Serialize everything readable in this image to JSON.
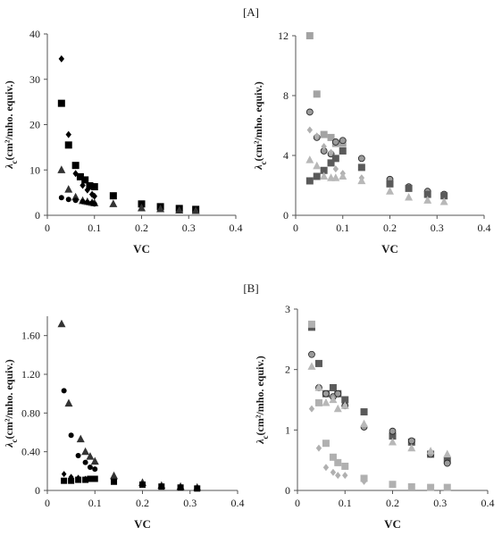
{
  "figure": {
    "panel_labels": [
      "[A]",
      "[B]"
    ]
  },
  "chart_data": [
    {
      "type": "scatter",
      "panel": "[A]",
      "xlabel": "VC",
      "ylabel_main": "λ",
      "ylabel_sub": "c",
      "ylabel_rest": "(cm²/mho. equiv.)",
      "xlim": [
        0,
        0.4
      ],
      "ylim": [
        0,
        40
      ],
      "xticks": [
        "0",
        "0.1",
        "0.2",
        "0.3",
        "0.4"
      ],
      "yticks": [
        "0",
        "10",
        "20",
        "30",
        "40"
      ],
      "grid": false,
      "series": [
        {
          "marker": "diamond",
          "color": "#000000",
          "size": 8,
          "points": [
            [
              0.03,
              34.5
            ],
            [
              0.045,
              17.8
            ],
            [
              0.06,
              9.2
            ],
            [
              0.075,
              6.6
            ],
            [
              0.085,
              5.6
            ],
            [
              0.095,
              4.6
            ],
            [
              0.1,
              4.2
            ]
          ]
        },
        {
          "marker": "square",
          "color": "#000000",
          "size": 8,
          "points": [
            [
              0.03,
              24.7
            ],
            [
              0.045,
              15.5
            ],
            [
              0.06,
              11
            ],
            [
              0.07,
              8.5
            ],
            [
              0.08,
              7.8
            ],
            [
              0.09,
              6.5
            ],
            [
              0.1,
              6.3
            ],
            [
              0.14,
              4.3
            ],
            [
              0.2,
              2.5
            ],
            [
              0.24,
              1.9
            ],
            [
              0.28,
              1.5
            ],
            [
              0.315,
              1.3
            ]
          ]
        },
        {
          "marker": "triangle",
          "color": "#333333",
          "size": 9,
          "points": [
            [
              0.03,
              10
            ],
            [
              0.045,
              5.7
            ],
            [
              0.06,
              4
            ],
            [
              0.075,
              3.2
            ],
            [
              0.085,
              3
            ],
            [
              0.095,
              2.8
            ],
            [
              0.1,
              2.7
            ],
            [
              0.14,
              2.5
            ],
            [
              0.2,
              1.6
            ],
            [
              0.24,
              1.4
            ],
            [
              0.28,
              1.1
            ],
            [
              0.315,
              1
            ]
          ]
        },
        {
          "marker": "circle",
          "color": "#000000",
          "size": 6,
          "points": [
            [
              0.03,
              3.9
            ],
            [
              0.045,
              3.5
            ],
            [
              0.06,
              3.3
            ],
            [
              0.075,
              3
            ],
            [
              0.085,
              2.8
            ],
            [
              0.095,
              2.7
            ],
            [
              0.1,
              2.5
            ]
          ]
        }
      ]
    },
    {
      "type": "scatter",
      "panel": "[A]",
      "xlabel": "VC",
      "ylabel_main": "λ",
      "ylabel_sub": "c",
      "ylabel_rest": "(cm²/mho. equiv.)",
      "xlim": [
        0,
        0.4
      ],
      "ylim": [
        0,
        12
      ],
      "xticks": [
        "0",
        "0.1",
        "0.2",
        "0.3",
        "0.4"
      ],
      "yticks": [
        "0",
        "4",
        "8",
        "12"
      ],
      "grid": false,
      "series": [
        {
          "marker": "square",
          "color": "#a3a3a3",
          "size": 8,
          "points": [
            [
              0.03,
              12
            ],
            [
              0.045,
              8.1
            ],
            [
              0.06,
              5.4
            ],
            [
              0.075,
              5.2
            ],
            [
              0.085,
              4.8
            ],
            [
              0.1,
              4.8
            ]
          ]
        },
        {
          "marker": "circle",
          "color": "#9a9a9a",
          "stroke": "#222222",
          "size": 7,
          "points": [
            [
              0.03,
              6.9
            ],
            [
              0.045,
              5.2
            ],
            [
              0.06,
              4.3
            ],
            [
              0.075,
              4.1
            ],
            [
              0.085,
              4.9
            ],
            [
              0.1,
              5
            ],
            [
              0.14,
              3.8
            ],
            [
              0.2,
              2.4
            ],
            [
              0.24,
              1.9
            ],
            [
              0.28,
              1.6
            ],
            [
              0.315,
              1.4
            ]
          ]
        },
        {
          "marker": "square",
          "color": "#5a5a5a",
          "size": 8,
          "points": [
            [
              0.03,
              2.3
            ],
            [
              0.045,
              2.6
            ],
            [
              0.06,
              3
            ],
            [
              0.075,
              3.5
            ],
            [
              0.085,
              3.8
            ],
            [
              0.1,
              4.3
            ],
            [
              0.14,
              3.2
            ],
            [
              0.2,
              2.1
            ],
            [
              0.24,
              1.8
            ],
            [
              0.28,
              1.4
            ],
            [
              0.315,
              1.3
            ]
          ]
        },
        {
          "marker": "diamond",
          "color": "#b0b0b0",
          "size": 8,
          "points": [
            [
              0.03,
              5.7
            ],
            [
              0.045,
              5.3
            ],
            [
              0.06,
              4.6
            ],
            [
              0.075,
              4.2
            ],
            [
              0.085,
              3.1
            ],
            [
              0.1,
              2.8
            ],
            [
              0.14,
              2.5
            ]
          ]
        },
        {
          "marker": "triangle",
          "color": "#b8b8b8",
          "size": 9,
          "points": [
            [
              0.03,
              3.7
            ],
            [
              0.045,
              3.3
            ],
            [
              0.06,
              2.6
            ],
            [
              0.075,
              2.5
            ],
            [
              0.085,
              2.5
            ],
            [
              0.1,
              2.6
            ],
            [
              0.14,
              2.3
            ],
            [
              0.2,
              1.6
            ],
            [
              0.24,
              1.2
            ],
            [
              0.28,
              1
            ],
            [
              0.315,
              0.9
            ]
          ]
        }
      ]
    },
    {
      "type": "scatter",
      "panel": "[B]",
      "xlabel": "VC",
      "ylabel_main": "λ",
      "ylabel_sub": "c",
      "ylabel_rest": "(cm²/mho. equiv.)",
      "xlim": [
        0,
        0.4
      ],
      "ylim": [
        0,
        1.8
      ],
      "xticks": [
        "0",
        "0.1",
        "0.2",
        "0.3",
        "0.4"
      ],
      "yticks": [
        "0",
        "0.40",
        "0.80",
        "1.20",
        "1.60"
      ],
      "ytick_values": [
        0,
        0.4,
        0.8,
        1.2,
        1.6
      ],
      "grid": false,
      "series": [
        {
          "marker": "triangle",
          "color": "#333333",
          "size": 9,
          "points": [
            [
              0.03,
              1.72
            ],
            [
              0.045,
              0.9
            ],
            [
              0.07,
              0.53
            ],
            [
              0.08,
              0.4
            ],
            [
              0.09,
              0.35
            ],
            [
              0.1,
              0.3
            ],
            [
              0.14,
              0.15
            ],
            [
              0.2,
              0.08
            ],
            [
              0.24,
              0.05
            ],
            [
              0.28,
              0.04
            ],
            [
              0.315,
              0.03
            ]
          ]
        },
        {
          "marker": "circle",
          "color": "#000000",
          "size": 6,
          "points": [
            [
              0.035,
              1.03
            ],
            [
              0.05,
              0.57
            ],
            [
              0.065,
              0.36
            ],
            [
              0.08,
              0.29
            ],
            [
              0.09,
              0.24
            ],
            [
              0.1,
              0.22
            ]
          ]
        },
        {
          "marker": "diamond",
          "color": "#000000",
          "size": 7,
          "points": [
            [
              0.035,
              0.17
            ],
            [
              0.05,
              0.14
            ],
            [
              0.065,
              0.13
            ],
            [
              0.08,
              0.12
            ],
            [
              0.09,
              0.12
            ],
            [
              0.1,
              0.12
            ]
          ]
        },
        {
          "marker": "square",
          "color": "#000000",
          "size": 7,
          "points": [
            [
              0.035,
              0.1
            ],
            [
              0.05,
              0.1
            ],
            [
              0.065,
              0.11
            ],
            [
              0.08,
              0.11
            ],
            [
              0.09,
              0.12
            ],
            [
              0.1,
              0.12
            ],
            [
              0.14,
              0.09
            ],
            [
              0.2,
              0.06
            ],
            [
              0.24,
              0.04
            ],
            [
              0.28,
              0.03
            ],
            [
              0.315,
              0.02
            ]
          ]
        }
      ]
    },
    {
      "type": "scatter",
      "panel": "[B]",
      "xlabel": "VC",
      "ylabel_main": "λ",
      "ylabel_sub": "c",
      "ylabel_rest": "(cm²/mho. equiv.)",
      "xlim": [
        0,
        0.4
      ],
      "ylim": [
        0,
        3
      ],
      "xticks": [
        "0",
        "0.1",
        "0.2",
        "0.3",
        "0.4"
      ],
      "yticks": [
        "0",
        "1",
        "2",
        "3"
      ],
      "grid": false,
      "series": [
        {
          "marker": "square",
          "color": "#5a5a5a",
          "size": 8,
          "points": [
            [
              0.03,
              2.7
            ],
            [
              0.045,
              2.1
            ],
            [
              0.06,
              1.6
            ],
            [
              0.075,
              1.7
            ],
            [
              0.085,
              1.6
            ],
            [
              0.1,
              1.5
            ],
            [
              0.14,
              1.3
            ],
            [
              0.2,
              0.9
            ],
            [
              0.24,
              0.8
            ],
            [
              0.28,
              0.6
            ],
            [
              0.315,
              0.5
            ]
          ]
        },
        {
          "marker": "circle",
          "color": "#9a9a9a",
          "stroke": "#222222",
          "size": 7,
          "points": [
            [
              0.03,
              2.25
            ],
            [
              0.045,
              1.7
            ],
            [
              0.06,
              1.6
            ],
            [
              0.075,
              1.55
            ],
            [
              0.085,
              1.6
            ],
            [
              0.1,
              1.4
            ],
            [
              0.14,
              1.05
            ],
            [
              0.2,
              0.98
            ],
            [
              0.24,
              0.82
            ],
            [
              0.28,
              0.6
            ],
            [
              0.315,
              0.45
            ]
          ]
        },
        {
          "marker": "triangle",
          "color": "#b8b8b8",
          "size": 9,
          "points": [
            [
              0.03,
              2.05
            ],
            [
              0.045,
              1.7
            ],
            [
              0.06,
              1.45
            ],
            [
              0.075,
              1.5
            ],
            [
              0.085,
              1.35
            ],
            [
              0.1,
              1.4
            ],
            [
              0.14,
              1.1
            ],
            [
              0.2,
              0.8
            ],
            [
              0.24,
              0.7
            ],
            [
              0.28,
              0.65
            ],
            [
              0.315,
              0.6
            ]
          ]
        },
        {
          "marker": "diamond",
          "color": "#b0b0b0",
          "size": 8,
          "points": [
            [
              0.03,
              1.35
            ],
            [
              0.045,
              0.7
            ],
            [
              0.06,
              0.38
            ],
            [
              0.075,
              0.3
            ],
            [
              0.085,
              0.25
            ],
            [
              0.1,
              0.25
            ],
            [
              0.14,
              0.15
            ]
          ]
        },
        {
          "marker": "square",
          "color": "#b0b0b0",
          "size": 8,
          "points": [
            [
              0.03,
              2.75
            ],
            [
              0.045,
              1.45
            ],
            [
              0.06,
              0.78
            ],
            [
              0.075,
              0.55
            ],
            [
              0.085,
              0.46
            ],
            [
              0.1,
              0.4
            ],
            [
              0.14,
              0.2
            ],
            [
              0.2,
              0.1
            ],
            [
              0.24,
              0.06
            ],
            [
              0.28,
              0.05
            ],
            [
              0.315,
              0.05
            ]
          ]
        }
      ]
    }
  ]
}
